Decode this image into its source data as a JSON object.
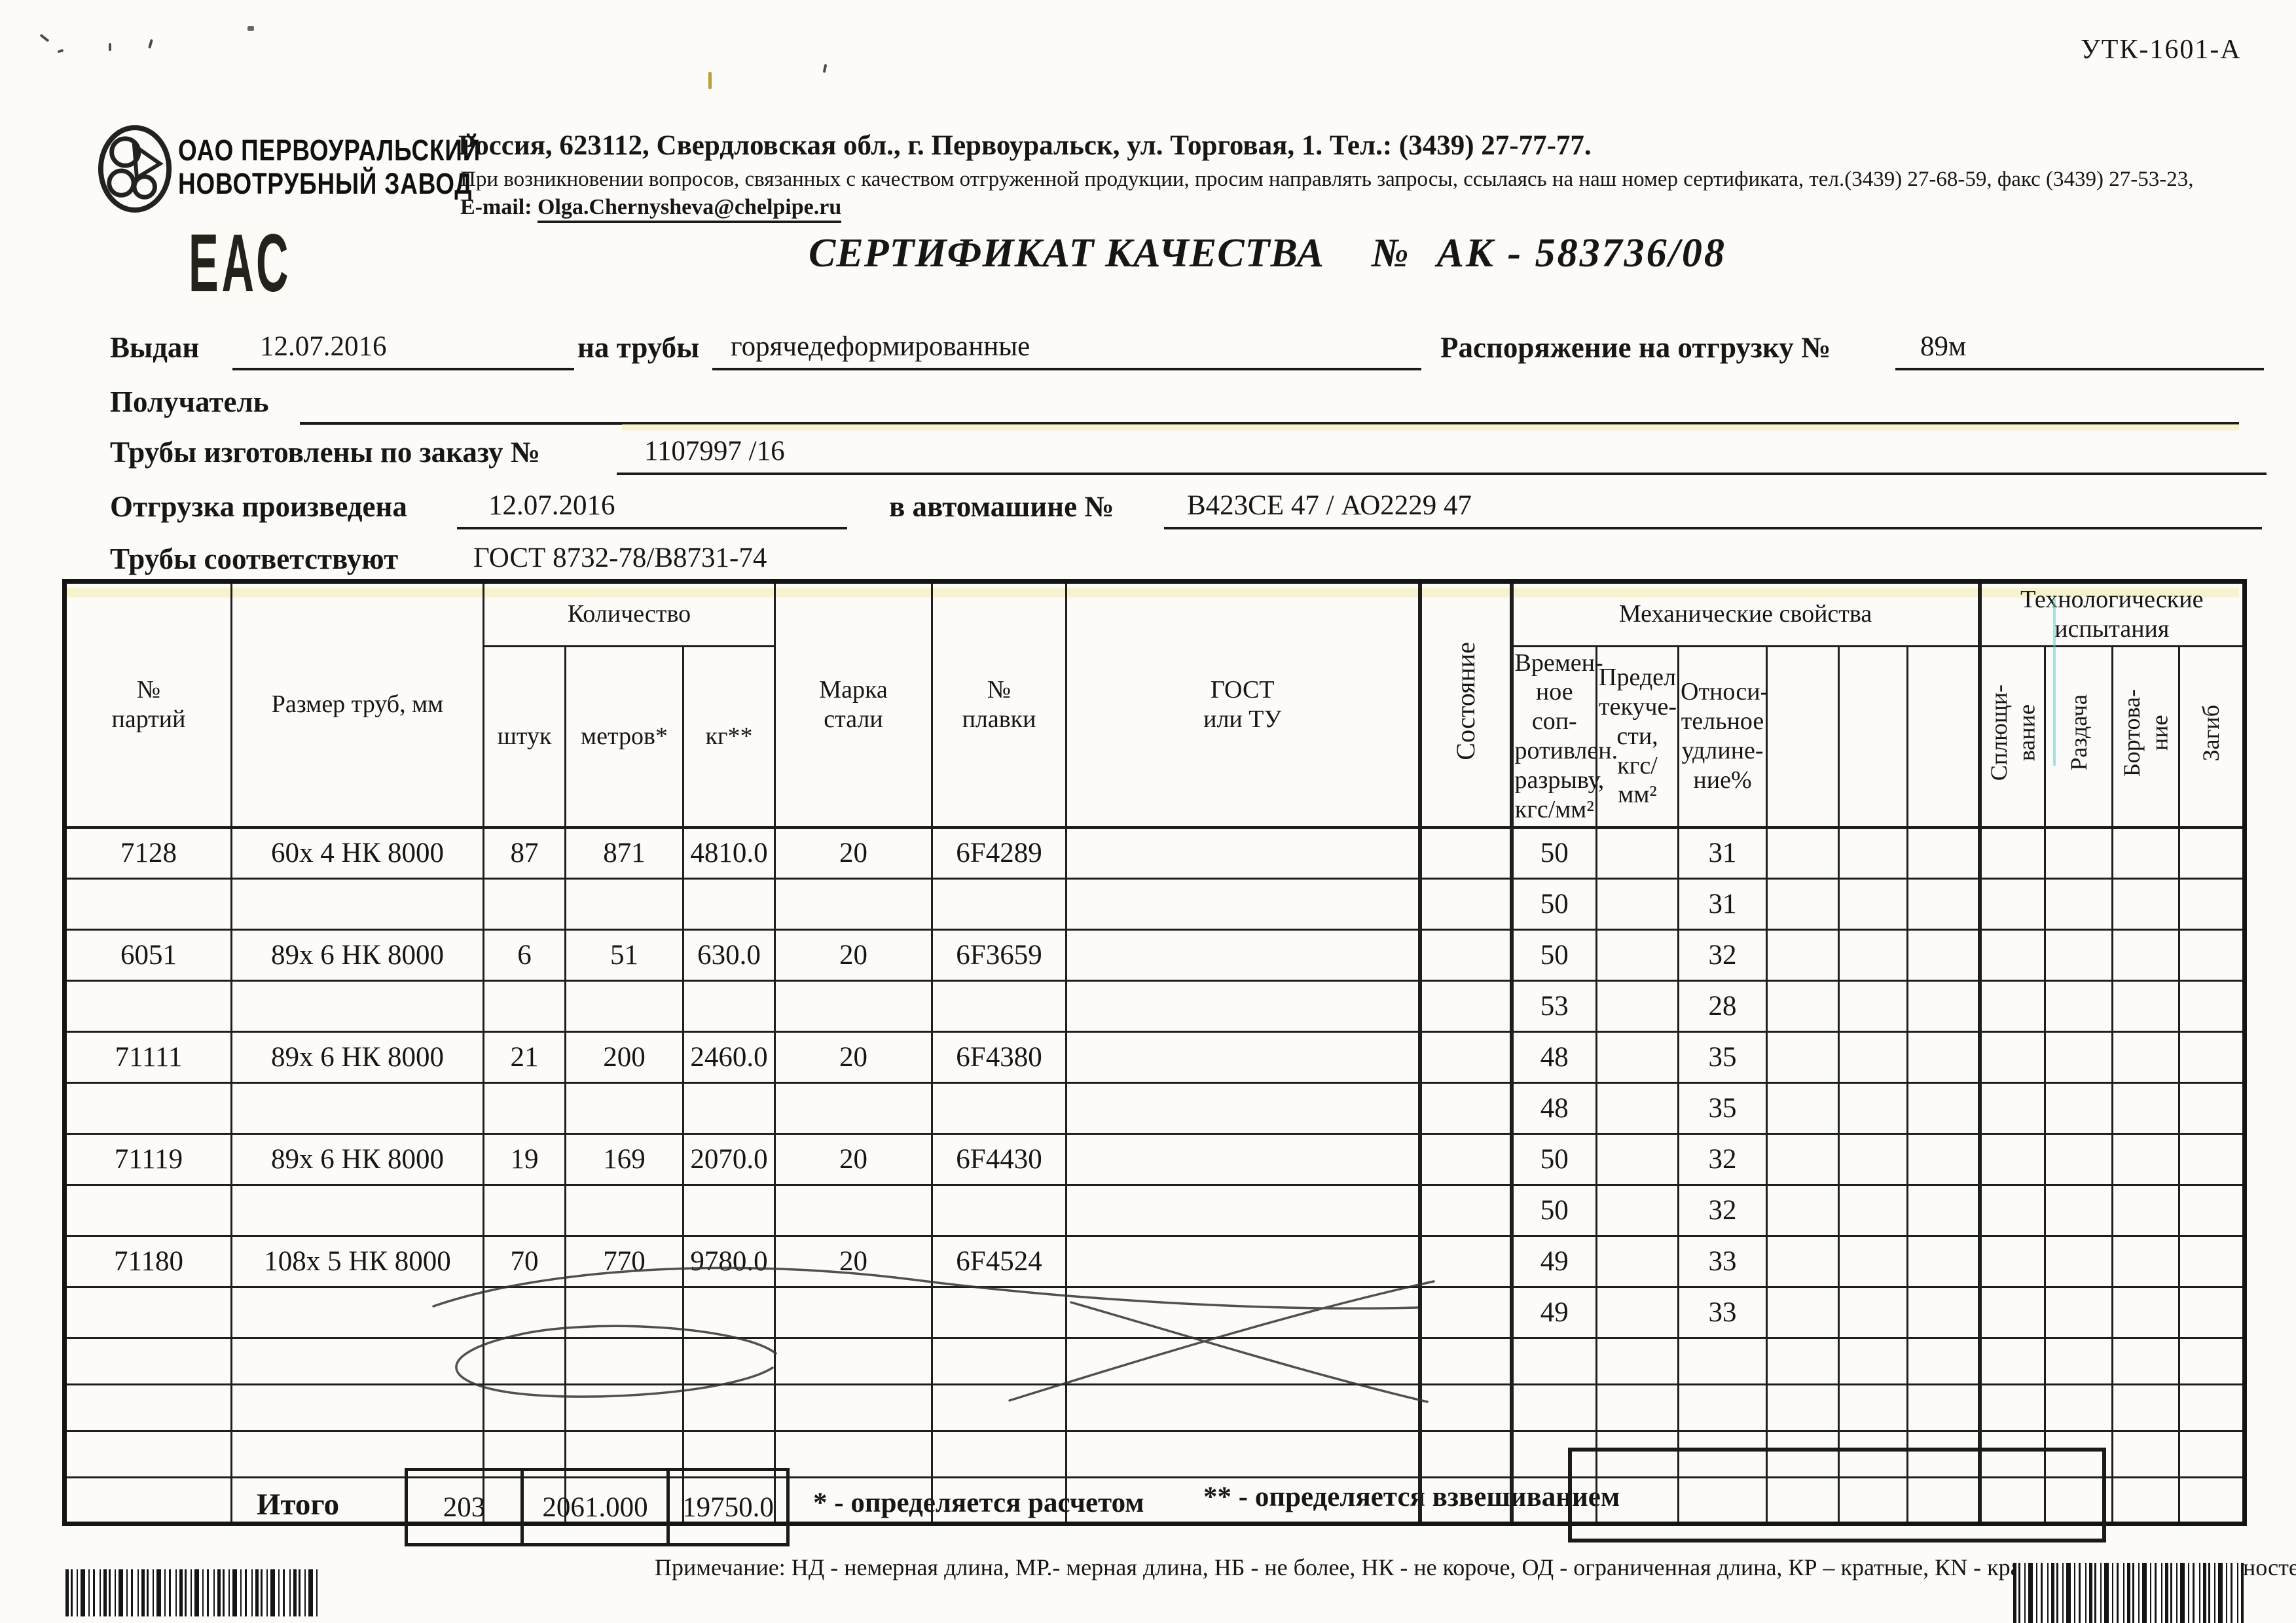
{
  "doc": {
    "form_code": "УТК-1601-А",
    "eac_mark": "ЕАС"
  },
  "company": {
    "name": "ОАО ПЕРВОУРАЛЬСКИЙ\nНОВОТРУБНЫЙ ЗАВОД",
    "address_line": "Россия, 623112, Свердловская обл., г. Первоуральск, ул. Торговая, 1. Тел.: (3439) 27-77-77.",
    "support_line": "При возникновении вопросов, связанных с качеством отгруженной продукции, просим направлять запросы, ссылаясь на наш номер сертификата, тел.(3439) 27-68-59, факс (3439) 27-53-23,",
    "email_label": "E-mail:",
    "email": "Olga.Chernysheva@chelpipe.ru"
  },
  "title": {
    "main": "СЕРТИФИКАТ КАЧЕСТВА",
    "num_sign": "№",
    "number": "АК - 583736/08"
  },
  "fields": {
    "issued_label": "Выдан",
    "issued_value": "12.07.2016",
    "pipes_label": "на трубы",
    "pipes_value": "горячедеформированные",
    "order_label": "Распоряжение на отгрузку №",
    "order_value": "89м",
    "receiver_label": "Получатель",
    "made_label": "Трубы изготовлены по заказу №",
    "made_value": "1107997  /16",
    "shipped_label": "Отгрузка произведена",
    "shipped_value": "12.07.2016",
    "truck_label": "в автомашине №",
    "truck_value": "В423СЕ 47 / АО2229 47",
    "conform_label": "Трубы соответствуют",
    "conform_value": "ГОСТ 8732-78/В8731-74"
  },
  "table": {
    "headers": {
      "batch": "№\nпартий",
      "size": "Размер труб, мм",
      "quantity_group": "Количество",
      "pieces": "штук",
      "meters": "метров*",
      "kg": "кг**",
      "steel_grade": "Марка\nстали",
      "heat_no": "№\nплавки",
      "gost": "ГОСТ\nили ТУ",
      "state": "Состояние",
      "mech_group": "Механические свойства",
      "tensile": "Времен-\nное соп-\nротивлен.\nразрыву,\nкгс/мм²",
      "yield": "Предел\nтекуче-\nсти,\nкгс/мм²",
      "elongation": "Относи-\nтельное\nудлине-\nние%",
      "tech_group": "Технологические\nиспытания",
      "flattening": "Сплющи-\nвание",
      "expansion": "Раздача",
      "flanging": "Бортова-\nние",
      "bend": "Загиб"
    },
    "body_rows": [
      [
        "7128",
        "60х 4 НК 8000",
        "87",
        "871",
        "4810.0",
        "20",
        "6F4289",
        "",
        "",
        "50",
        "",
        "31",
        "",
        "",
        "",
        "",
        "",
        "",
        ""
      ],
      [
        "",
        "",
        "",
        "",
        "",
        "",
        "",
        "",
        "",
        "50",
        "",
        "31",
        "",
        "",
        "",
        "",
        "",
        "",
        ""
      ],
      [
        "6051",
        "89х 6 НК 8000",
        "6",
        "51",
        "630.0",
        "20",
        "6F3659",
        "",
        "",
        "50",
        "",
        "32",
        "",
        "",
        "",
        "",
        "",
        "",
        ""
      ],
      [
        "",
        "",
        "",
        "",
        "",
        "",
        "",
        "",
        "",
        "53",
        "",
        "28",
        "",
        "",
        "",
        "",
        "",
        "",
        ""
      ],
      [
        "71111",
        "89х 6 НК 8000",
        "21",
        "200",
        "2460.0",
        "20",
        "6F4380",
        "",
        "",
        "48",
        "",
        "35",
        "",
        "",
        "",
        "",
        "",
        "",
        ""
      ],
      [
        "",
        "",
        "",
        "",
        "",
        "",
        "",
        "",
        "",
        "48",
        "",
        "35",
        "",
        "",
        "",
        "",
        "",
        "",
        ""
      ],
      [
        "71119",
        "89х 6 НК 8000",
        "19",
        "169",
        "2070.0",
        "20",
        "6F4430",
        "",
        "",
        "50",
        "",
        "32",
        "",
        "",
        "",
        "",
        "",
        "",
        ""
      ],
      [
        "",
        "",
        "",
        "",
        "",
        "",
        "",
        "",
        "",
        "50",
        "",
        "32",
        "",
        "",
        "",
        "",
        "",
        "",
        ""
      ],
      [
        "71180",
        "108х 5 НК 8000",
        "70",
        "770",
        "9780.0",
        "20",
        "6F4524",
        "",
        "",
        "49",
        "",
        "33",
        "",
        "",
        "",
        "",
        "",
        "",
        ""
      ],
      [
        "",
        "",
        "",
        "",
        "",
        "",
        "",
        "",
        "",
        "49",
        "",
        "33",
        "",
        "",
        "",
        "",
        "",
        "",
        ""
      ],
      [
        "",
        "",
        "",
        "",
        "",
        "",
        "",
        "",
        "",
        "",
        "",
        "",
        "",
        "",
        "",
        "",
        "",
        "",
        ""
      ],
      [
        "",
        "",
        "",
        "",
        "",
        "",
        "",
        "",
        "",
        "",
        "",
        "",
        "",
        "",
        "",
        "",
        "",
        "",
        ""
      ],
      [
        "",
        "",
        "",
        "",
        "",
        "",
        "",
        "",
        "",
        "",
        "",
        "",
        "",
        "",
        "",
        "",
        "",
        "",
        ""
      ],
      [
        "",
        "",
        "",
        "",
        "",
        "",
        "",
        "",
        "",
        "",
        "",
        "",
        "",
        "",
        "",
        "",
        "",
        "",
        ""
      ]
    ],
    "totals": {
      "label": "Итого",
      "pieces": "203",
      "meters": "2061.000",
      "kg": "19750.0"
    },
    "footnote_star": "* - определяется расчетом",
    "footnote_double_star": "** - определяется взвешиванием",
    "note": "Примечание: НД - немерная длина, МР.- мерная длина, НБ - не более, НК - не короче, ОД - ограниченная длина, КР – кратные, КN - кратные, количество кратностей"
  }
}
